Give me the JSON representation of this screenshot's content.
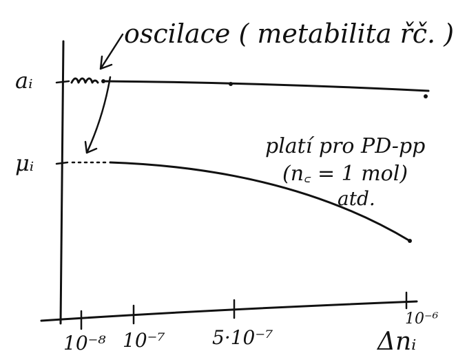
{
  "annotation": "oscilace ( metabilita řč. )",
  "y_labels": [
    "aᵢ",
    "μᵢ"
  ],
  "note": [
    "platí pro PD-pp",
    "(n꜀ = 1 mol)",
    "atd."
  ],
  "x_tick_labels": [
    "10⁻⁸",
    "10⁻⁷",
    "5·10⁻⁷",
    "10⁻⁶"
  ],
  "x_label": "Δnᵢ"
}
